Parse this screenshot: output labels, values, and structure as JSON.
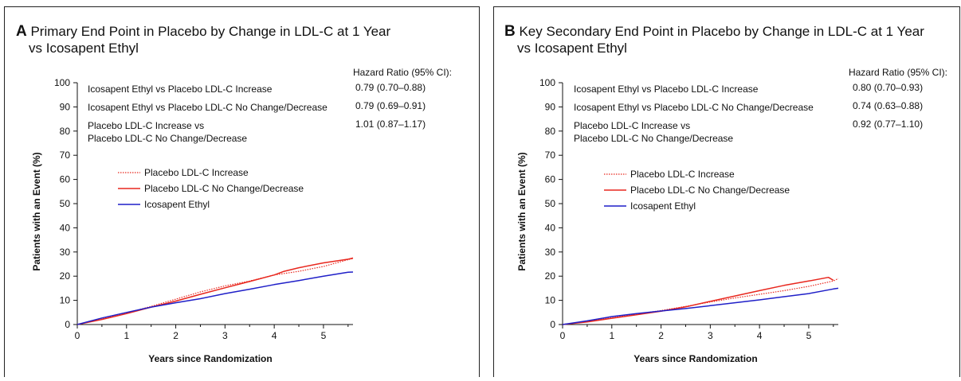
{
  "panels": [
    {
      "letter": "A",
      "title_line1": "Primary End Point in Placebo by Change in LDL-C at 1 Year",
      "title_line2": "vs Icosapent Ethyl",
      "hr_header": "Hazard Ratio (95% CI):",
      "hr_rows": [
        {
          "label": [
            "Icosapent Ethyl vs Placebo LDL-C Increase"
          ],
          "value": "0.79 (0.70–0.88)"
        },
        {
          "label": [
            "Icosapent Ethyl vs Placebo LDL-C No Change/Decrease"
          ],
          "value": "0.79 (0.69–0.91)"
        },
        {
          "label": [
            "Placebo LDL-C Increase vs",
            "Placebo LDL-C No Change/Decrease"
          ],
          "value": "1.01 (0.87–1.17)"
        }
      ]
    },
    {
      "letter": "B",
      "title_line1": "Key Secondary End Point in Placebo by Change in LDL-C at 1 Year",
      "title_line2": "vs Icosapent Ethyl",
      "hr_header": "Hazard Ratio (95% CI):",
      "hr_rows": [
        {
          "label": [
            "Icosapent Ethyl  vs Placebo LDL-C Increase"
          ],
          "value": "0.80 (0.70–0.93)"
        },
        {
          "label": [
            "Icosapent Ethyl vs Placebo LDL-C No Change/Decrease"
          ],
          "value": "0.74 (0.63–0.88)"
        },
        {
          "label": [
            "Placebo LDL-C Increase vs",
            "Placebo LDL-C No Change/Decrease"
          ],
          "value": "0.92 (0.77–1.10)"
        }
      ]
    }
  ],
  "chart_data": [
    {
      "type": "line",
      "title": "Primary End Point in Placebo by Change in LDL-C at 1 Year vs Icosapent Ethyl",
      "xlabel": "Years since Randomization",
      "ylabel": "Patients with an Event (%)",
      "xlim": [
        0,
        5.6
      ],
      "ylim": [
        0,
        100
      ],
      "xticks": [
        0,
        1,
        2,
        3,
        4,
        5
      ],
      "yticks": [
        0,
        10,
        20,
        30,
        40,
        50,
        60,
        70,
        80,
        90,
        100
      ],
      "grid": false,
      "legend_position": "middle-left",
      "series": [
        {
          "name": "Placebo LDL-C Increase",
          "color": "#e8271e",
          "style": "dotted",
          "x": [
            0,
            0.5,
            1,
            1.5,
            2,
            2.5,
            3,
            3.5,
            4,
            4.5,
            5,
            5.5,
            5.6
          ],
          "y": [
            0,
            2.3,
            4.8,
            7.5,
            10.5,
            13.5,
            16,
            18,
            20.5,
            22,
            24,
            26.8,
            27.3
          ]
        },
        {
          "name": "Placebo LDL-C No Change/Decrease",
          "color": "#e8271e",
          "style": "solid",
          "x": [
            0,
            0.5,
            1,
            1.5,
            2,
            2.5,
            3,
            3.5,
            4,
            4.2,
            4.5,
            5,
            5.5,
            5.6
          ],
          "y": [
            0,
            2.1,
            4.5,
            7.2,
            9.7,
            12.5,
            15.2,
            17.8,
            20.5,
            22,
            23.5,
            25.5,
            27,
            27.5
          ]
        },
        {
          "name": "Icosapent Ethyl",
          "color": "#1f1fc8",
          "style": "solid",
          "x": [
            0,
            0.5,
            1,
            1.5,
            2,
            2.5,
            3,
            3.5,
            4,
            4.5,
            5,
            5.5,
            5.6
          ],
          "y": [
            0,
            2.7,
            5.0,
            7.2,
            9.0,
            10.7,
            12.8,
            14.6,
            16.5,
            18.2,
            20,
            21.6,
            21.7
          ]
        }
      ]
    },
    {
      "type": "line",
      "title": "Key Secondary End Point in Placebo by Change in LDL-C at 1 Year vs Icosapent Ethyl",
      "xlabel": "Years since Randomization",
      "ylabel": "Patients with an Event (%)",
      "xlim": [
        0,
        5.6
      ],
      "ylim": [
        0,
        100
      ],
      "xticks": [
        0,
        1,
        2,
        3,
        4,
        5
      ],
      "yticks": [
        0,
        10,
        20,
        30,
        40,
        50,
        60,
        70,
        80,
        90,
        100
      ],
      "grid": false,
      "legend_position": "middle-left",
      "series": [
        {
          "name": "Placebo LDL-C Increase",
          "color": "#e8271e",
          "style": "dotted",
          "x": [
            0,
            0.5,
            1,
            1.5,
            2,
            2.5,
            3,
            3.5,
            4,
            4.5,
            5,
            5.5,
            5.6
          ],
          "y": [
            0,
            1.2,
            2.8,
            4.3,
            5.8,
            7.5,
            9.3,
            11,
            12.5,
            14,
            15.8,
            18,
            19
          ]
        },
        {
          "name": "Placebo LDL-C No Change/Decrease",
          "color": "#e8271e",
          "style": "solid",
          "x": [
            0,
            0.5,
            1,
            1.5,
            2,
            2.5,
            3,
            3.5,
            4,
            4.5,
            5,
            5.4,
            5.5
          ],
          "y": [
            0,
            1.1,
            2.6,
            4.0,
            5.5,
            7.3,
            9.6,
            11.8,
            14,
            16.2,
            18,
            19.5,
            18.3
          ]
        },
        {
          "name": "Icosapent Ethyl",
          "color": "#1f1fc8",
          "style": "solid",
          "x": [
            0,
            0.5,
            1,
            1.5,
            2,
            2.5,
            3,
            3.5,
            4,
            4.5,
            5,
            5.5,
            5.6
          ],
          "y": [
            0,
            1.5,
            3.3,
            4.5,
            5.6,
            6.6,
            7.8,
            9.0,
            10.2,
            11.5,
            12.8,
            14.7,
            15
          ]
        }
      ]
    }
  ]
}
